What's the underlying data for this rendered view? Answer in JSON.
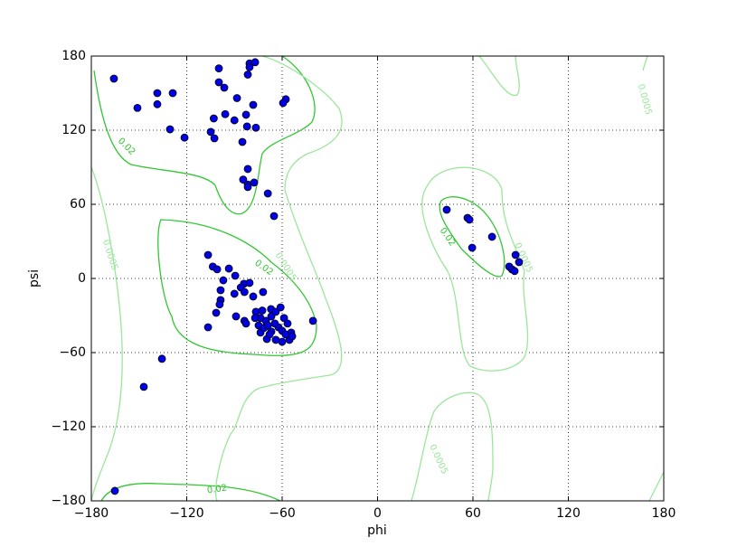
{
  "chart_data": {
    "type": "scatter",
    "x_label": "phi",
    "y_label": "psi",
    "xlim": [
      -180,
      180
    ],
    "ylim": [
      -180,
      180
    ],
    "xticks": [
      {
        "value": -180,
        "label": "−180"
      },
      {
        "value": -120,
        "label": "−120"
      },
      {
        "value": -60,
        "label": "−60"
      },
      0,
      60,
      120,
      180
    ],
    "yticks": [
      {
        "value": -180,
        "label": "−180"
      },
      {
        "value": -120,
        "label": "−120"
      },
      {
        "value": -60,
        "label": "−60"
      },
      0,
      60,
      120,
      180
    ],
    "grid": true,
    "contours": [
      {
        "level": 0.02,
        "color": "#33c633"
      },
      {
        "level": 0.0005,
        "color": "#9be69b"
      }
    ],
    "series": [
      {
        "color": "#0000e6",
        "x": [
          -165.8,
          -151,
          -138.5,
          -138.5,
          -128.8,
          -130.5,
          -121.4,
          -99.8,
          -99.8,
          -96.4,
          -80.5,
          -77,
          -80.5,
          -81.6,
          -88.4,
          -103,
          -95.8,
          -90,
          -82.7,
          -82.1,
          -78.2,
          -76.5,
          -85,
          -57.7,
          -59.4,
          -104.9,
          -102.6,
          -81.6,
          -84.5,
          -77.6,
          -81.6,
          -81.6,
          -69,
          -65.1,
          -106.6,
          -103.6,
          -100.9,
          -93.5,
          -89.5,
          -97,
          -98.7,
          -84,
          -80.5,
          -86,
          -98.7,
          -90,
          -83.7,
          -99.3,
          -101.5,
          -106.6,
          -78.2,
          -72,
          -89,
          -83.7,
          -82.7,
          -40.6,
          -135.6,
          -147,
          -165.2,
          -67,
          -76.5,
          -73.6,
          -70.2,
          -66.8,
          -64,
          -61,
          -58.8,
          -56.6,
          -54.3,
          -55.4,
          -60,
          -64,
          -69.6,
          -73.6,
          -66.8,
          -62.3,
          -74.8,
          -71.4,
          -64.6,
          -60,
          -57.8,
          -67.9,
          -77,
          -53.7,
          -72.5,
          -69,
          43.5,
          56.6,
          57.8,
          59.5,
          72,
          86.8,
          89,
          82.8,
          84.5,
          86.2
        ],
        "values": [
          161.7,
          138,
          150,
          141,
          150,
          120.7,
          114,
          170,
          158.8,
          154.4,
          174,
          175,
          171,
          165,
          146,
          129.5,
          133,
          128,
          132.5,
          123,
          140.5,
          122,
          110.5,
          145,
          142,
          118.6,
          113.4,
          88.6,
          80,
          77.6,
          76,
          74,
          68.8,
          50.5,
          19,
          9.6,
          7.4,
          8,
          2.2,
          -1.5,
          -9.5,
          -4.3,
          -3.6,
          -7.3,
          -17.5,
          -12.4,
          -11,
          -21,
          -27.8,
          -39.5,
          -14.6,
          -11,
          -30.7,
          -34.3,
          -36.5,
          -34.3,
          -65,
          -87.7,
          -171.9,
          -24.8,
          -27,
          -32,
          -34.3,
          -30.7,
          -27,
          -23.4,
          -32,
          -36.5,
          -43.8,
          -49.7,
          -51.2,
          -49.7,
          -49,
          -43.8,
          -43,
          -39.5,
          -38,
          -40,
          -36.5,
          -42.4,
          -45.3,
          -45.3,
          -32,
          -46.8,
          -26,
          -38,
          55.6,
          49,
          47.6,
          24.9,
          33.7,
          19,
          13.2,
          9.6,
          7.4,
          6
        ]
      }
    ]
  }
}
